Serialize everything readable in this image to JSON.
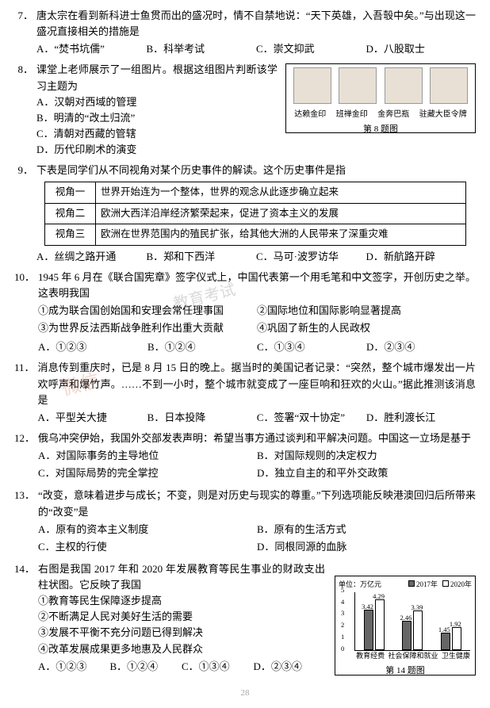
{
  "q7": {
    "num": "7．",
    "stem": "唐太宗在看到新科进士鱼贯而出的盛况时，情不自禁地说：“天下英雄，入吾彀中矣。”与出现这一盛况直接相关的措施是",
    "opts": [
      "A．“焚书坑儒”",
      "B．科举考试",
      "C．崇文抑武",
      "D．八股取士"
    ]
  },
  "q8": {
    "num": "8．",
    "stem": "课堂上老师展示了一组图片。根据这组图片判断该学习主题为",
    "subs": [
      "A．汉朝对西域的管理",
      "B．明清的“改土归流”",
      "C．清朝对西藏的管辖",
      "D．历代印刷术的演变"
    ],
    "img_labels": [
      "达赖金印",
      "班禅金印",
      "金奔巴瓶",
      "驻藏大臣令牌"
    ],
    "img_caption": "第 8 题图"
  },
  "q9": {
    "num": "9．",
    "stem": "下表是同学们从不同视角对某个历史事件的解读。这个历史事件是指",
    "rows": [
      [
        "视角一",
        "世界开始连为一个整体，世界的观念从此逐步确立起来"
      ],
      [
        "视角二",
        "欧洲大西洋沿岸经济繁荣起来，促进了资本主义的发展"
      ],
      [
        "视角三",
        "欧洲在世界范围内的殖民扩张，给其他大洲的人民带来了深重灾难"
      ]
    ],
    "opts": [
      "A．丝绸之路开通",
      "B．郑和下西洋",
      "C．马可·波罗访华",
      "D．新航路开辟"
    ]
  },
  "q10": {
    "num": "10．",
    "stem": "1945 年 6 月在《联合国宪章》签字仪式上，中国代表第一个用毛笔和中文签字，开创历史之举。这表明我国",
    "items": [
      "①成为联合国创始国和安理会常任理事国",
      "②国际地位和国际影响显著提高",
      "③为世界反法西斯战争胜利作出重大贡献",
      "④巩固了新生的人民政权"
    ],
    "opts": [
      "A．①②③",
      "B．①②④",
      "C．①③④",
      "D．②③④"
    ]
  },
  "q11": {
    "num": "11．",
    "stem": "消息传到重庆时，已是 8 月 15 日的晚上。据当时的美国记者记录：“突然，整个城市爆发出一片欢呼声和爆竹声。……不到一小时，整个城市就变成了一座巨响和狂欢的火山。”据此推测该消息是",
    "opts": [
      "A．平型关大捷",
      "B．日本投降",
      "C．签署“双十协定”",
      "D．胜利渡长江"
    ]
  },
  "q12": {
    "num": "12．",
    "stem": "俄乌冲突伊始，我国外交部发表声明：希望当事方通过谈判和平解决问题。中国这一立场是基于",
    "opts": [
      "A．对国际事务的主导地位",
      "B．对国际规则的决定权力",
      "C．对国际局势的完全掌控",
      "D．独立自主的和平外交政策"
    ]
  },
  "q13": {
    "num": "13．",
    "stem": "“改变，意味着进步与成长；不变，则是对历史与现实的尊重。”下列选项能反映港澳回归后所带来的“改变”是",
    "opts": [
      "A．原有的资本主义制度",
      "B．原有的生活方式",
      "C．主权的行使",
      "D．同根同源的血脉"
    ]
  },
  "q14": {
    "num": "14．",
    "stem": "右图是我国 2017 年和 2020 年发展教育等民生事业的财政支出柱状图。它反映了我国",
    "items": [
      "①教育等民生保障逐步提高",
      "②不断满足人民对美好生活的需要",
      "③发展不平衡不充分问题已得到解决",
      "④改革发展成果更多地惠及人民群众"
    ],
    "opts": [
      "A．①②③",
      "B．①②④",
      "C．①③④",
      "D．②③④"
    ],
    "chart": {
      "unit": "单位：万亿元",
      "legend": [
        "2017年",
        "2020年"
      ],
      "colors": [
        "#666666",
        "#ffffff"
      ],
      "categories": [
        "教育经费",
        "社会保障和就业",
        "卫生健康"
      ],
      "series": [
        [
          3.42,
          4.29
        ],
        [
          2.46,
          3.39
        ],
        [
          1.45,
          1.92
        ]
      ],
      "ylim": [
        0,
        5
      ],
      "yticks": [
        0,
        1,
        2,
        3,
        4,
        5
      ],
      "caption": "第 14 题图"
    }
  },
  "page_num": "28"
}
